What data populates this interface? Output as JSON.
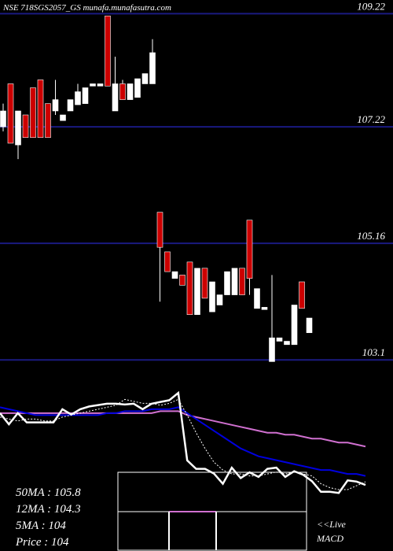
{
  "chart_data": {
    "type": "candlestick",
    "title": "NSE 718SGS2057_GS munafa.munafasutra.com",
    "open": [
      107.22,
      107.98,
      106.9,
      107.43,
      107.91,
      108.05,
      107.63,
      107.5,
      107.33,
      107.5,
      107.61,
      107.63,
      107.94,
      107.94,
      109.18,
      107.5,
      107.98,
      107.7,
      107.74,
      107.98,
      107.98,
      105.71,
      105.01,
      104.54,
      104.6,
      104.83,
      103.9,
      104.72,
      103.95,
      104.07,
      104.25,
      104.25,
      104.72,
      105.57,
      104.01,
      103.99,
      103.07,
      103.43,
      103.37,
      103.37,
      104.48,
      103.58
    ],
    "high": [
      107.63,
      107.98,
      107.5,
      107.43,
      107.91,
      108.05,
      107.63,
      108.05,
      107.43,
      107.7,
      107.98,
      107.91,
      107.98,
      107.98,
      109.18,
      108.46,
      108.05,
      107.98,
      108.07,
      108.16,
      108.77,
      105.71,
      105.01,
      104.66,
      104.6,
      104.83,
      104.72,
      104.72,
      104.48,
      104.25,
      104.66,
      104.72,
      104.72,
      105.57,
      104.36,
      104.03,
      104.6,
      103.49,
      103.43,
      104.07,
      104.48,
      103.84
    ],
    "low": [
      107.14,
      106.93,
      106.65,
      107.03,
      107.03,
      107.03,
      107.03,
      107.43,
      107.33,
      107.5,
      107.61,
      107.63,
      107.94,
      107.94,
      107.94,
      107.5,
      107.7,
      107.7,
      107.74,
      107.98,
      107.98,
      104.13,
      104.66,
      104.54,
      104.42,
      103.9,
      103.9,
      104.19,
      103.95,
      104.07,
      104.25,
      104.25,
      104.25,
      104.25,
      104.01,
      103.99,
      103.07,
      103.43,
      103.37,
      103.37,
      104.01,
      103.58
    ],
    "close": [
      107.5,
      106.93,
      107.5,
      107.03,
      107.03,
      107.03,
      107.03,
      107.7,
      107.43,
      107.7,
      107.84,
      107.91,
      107.98,
      107.98,
      107.94,
      107.98,
      107.7,
      107.98,
      108.07,
      108.16,
      108.53,
      105.09,
      104.66,
      104.66,
      104.42,
      103.9,
      104.72,
      104.19,
      104.48,
      104.25,
      104.66,
      104.72,
      104.25,
      104.54,
      104.36,
      104.03,
      103.49,
      103.49,
      103.43,
      104.07,
      104.01,
      103.84
    ],
    "up_color": "#ffffff",
    "down_color": "#cc0000",
    "ylim": [
      102.95,
      109.35
    ],
    "yticks": [
      109.22,
      107.22,
      105.16,
      103.1
    ],
    "ma_panel": {
      "ylim": [
        103.2,
        109.3
      ],
      "series": [
        {
          "name": "50MA",
          "color": "#d070d0",
          "values": [
            107.5,
            107.5,
            107.5,
            107.5,
            107.5,
            107.5,
            107.5,
            107.5,
            107.5,
            107.5,
            107.5,
            107.5,
            107.5,
            107.5,
            107.5,
            107.5,
            107.5,
            107.5,
            107.6,
            107.6,
            107.6,
            107.4,
            107.3,
            107.2,
            107.1,
            107.0,
            106.9,
            106.8,
            106.7,
            106.6,
            106.5,
            106.5,
            106.4,
            106.4,
            106.3,
            106.2,
            106.2,
            106.1,
            106.0,
            106.0,
            105.9,
            105.8
          ]
        },
        {
          "name": "12MA",
          "color": "#0000dd",
          "values": [
            107.8,
            107.7,
            107.6,
            107.5,
            107.4,
            107.4,
            107.4,
            107.4,
            107.4,
            107.4,
            107.4,
            107.4,
            107.5,
            107.5,
            107.6,
            107.6,
            107.6,
            107.7,
            107.7,
            107.7,
            107.8,
            107.5,
            107.2,
            106.9,
            106.6,
            106.3,
            106.0,
            105.7,
            105.5,
            105.3,
            105.2,
            105.1,
            105.0,
            104.9,
            104.8,
            104.7,
            104.6,
            104.6,
            104.5,
            104.4,
            104.4,
            104.3
          ]
        },
        {
          "name": "5MA",
          "color": "#ffffff",
          "values": [
            107.3,
            107.2,
            107.1,
            107.2,
            107.2,
            107.1,
            107.1,
            107.3,
            107.4,
            107.5,
            107.6,
            107.7,
            107.8,
            107.9,
            108.2,
            108.1,
            108.0,
            108.0,
            107.9,
            108.0,
            108.2,
            107.4,
            106.5,
            105.7,
            105.0,
            104.6,
            104.4,
            104.4,
            104.3,
            104.3,
            104.4,
            104.5,
            104.4,
            104.5,
            104.4,
            104.3,
            103.9,
            103.7,
            103.6,
            103.6,
            103.8,
            104.0
          ]
        }
      ]
    },
    "info_labels": [
      "50MA : 105.8",
      "12MA : 104.3",
      "5MA : 104",
      "Price   : 104"
    ],
    "live_label": "<<Live",
    "macd_label": "MACD"
  }
}
